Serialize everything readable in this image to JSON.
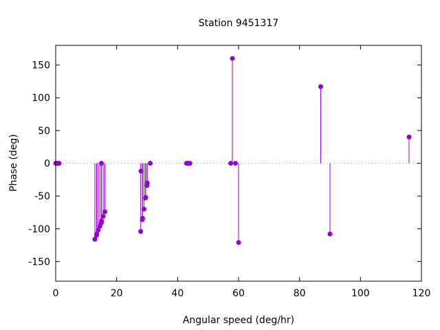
{
  "chart_data": {
    "type": "scatter",
    "style": "impulses-with-points",
    "title": "Station 9451317",
    "xlabel": "Angular speed (deg/hr)",
    "ylabel": "Phase (deg)",
    "xlim": [
      0,
      120
    ],
    "ylim": [
      -180,
      180
    ],
    "xticks": [
      0,
      20,
      40,
      60,
      80,
      100,
      120
    ],
    "yticks": [
      -150,
      -100,
      -50,
      0,
      50,
      100,
      150
    ],
    "grid": false,
    "zero_line": "dotted",
    "color": "#9400d3",
    "points": [
      {
        "x": 0.04,
        "y": 0
      },
      {
        "x": 0.08,
        "y": 0
      },
      {
        "x": 0.54,
        "y": 0
      },
      {
        "x": 1.02,
        "y": 0
      },
      {
        "x": 1.1,
        "y": 0
      },
      {
        "x": 12.85,
        "y": -116
      },
      {
        "x": 13.4,
        "y": -110
      },
      {
        "x": 13.47,
        "y": -108
      },
      {
        "x": 13.94,
        "y": -102
      },
      {
        "x": 14.49,
        "y": -96
      },
      {
        "x": 14.96,
        "y": -91
      },
      {
        "x": 15.0,
        "y": 0
      },
      {
        "x": 15.04,
        "y": -88
      },
      {
        "x": 15.59,
        "y": -81
      },
      {
        "x": 16.14,
        "y": -74
      },
      {
        "x": 27.9,
        "y": -104
      },
      {
        "x": 27.97,
        "y": -12
      },
      {
        "x": 28.44,
        "y": -86
      },
      {
        "x": 28.51,
        "y": -84
      },
      {
        "x": 28.98,
        "y": -70
      },
      {
        "x": 29.46,
        "y": -53
      },
      {
        "x": 29.53,
        "y": -52
      },
      {
        "x": 29.96,
        "y": -34
      },
      {
        "x": 30.04,
        "y": -30
      },
      {
        "x": 31.02,
        "y": 0
      },
      {
        "x": 42.93,
        "y": 0
      },
      {
        "x": 43.48,
        "y": 0
      },
      {
        "x": 44.03,
        "y": 0
      },
      {
        "x": 57.42,
        "y": 0
      },
      {
        "x": 57.97,
        "y": 160
      },
      {
        "x": 58.98,
        "y": 0
      },
      {
        "x": 60.0,
        "y": -121
      },
      {
        "x": 86.95,
        "y": 117
      },
      {
        "x": 90.0,
        "y": -108
      },
      {
        "x": 115.94,
        "y": 40
      }
    ]
  }
}
